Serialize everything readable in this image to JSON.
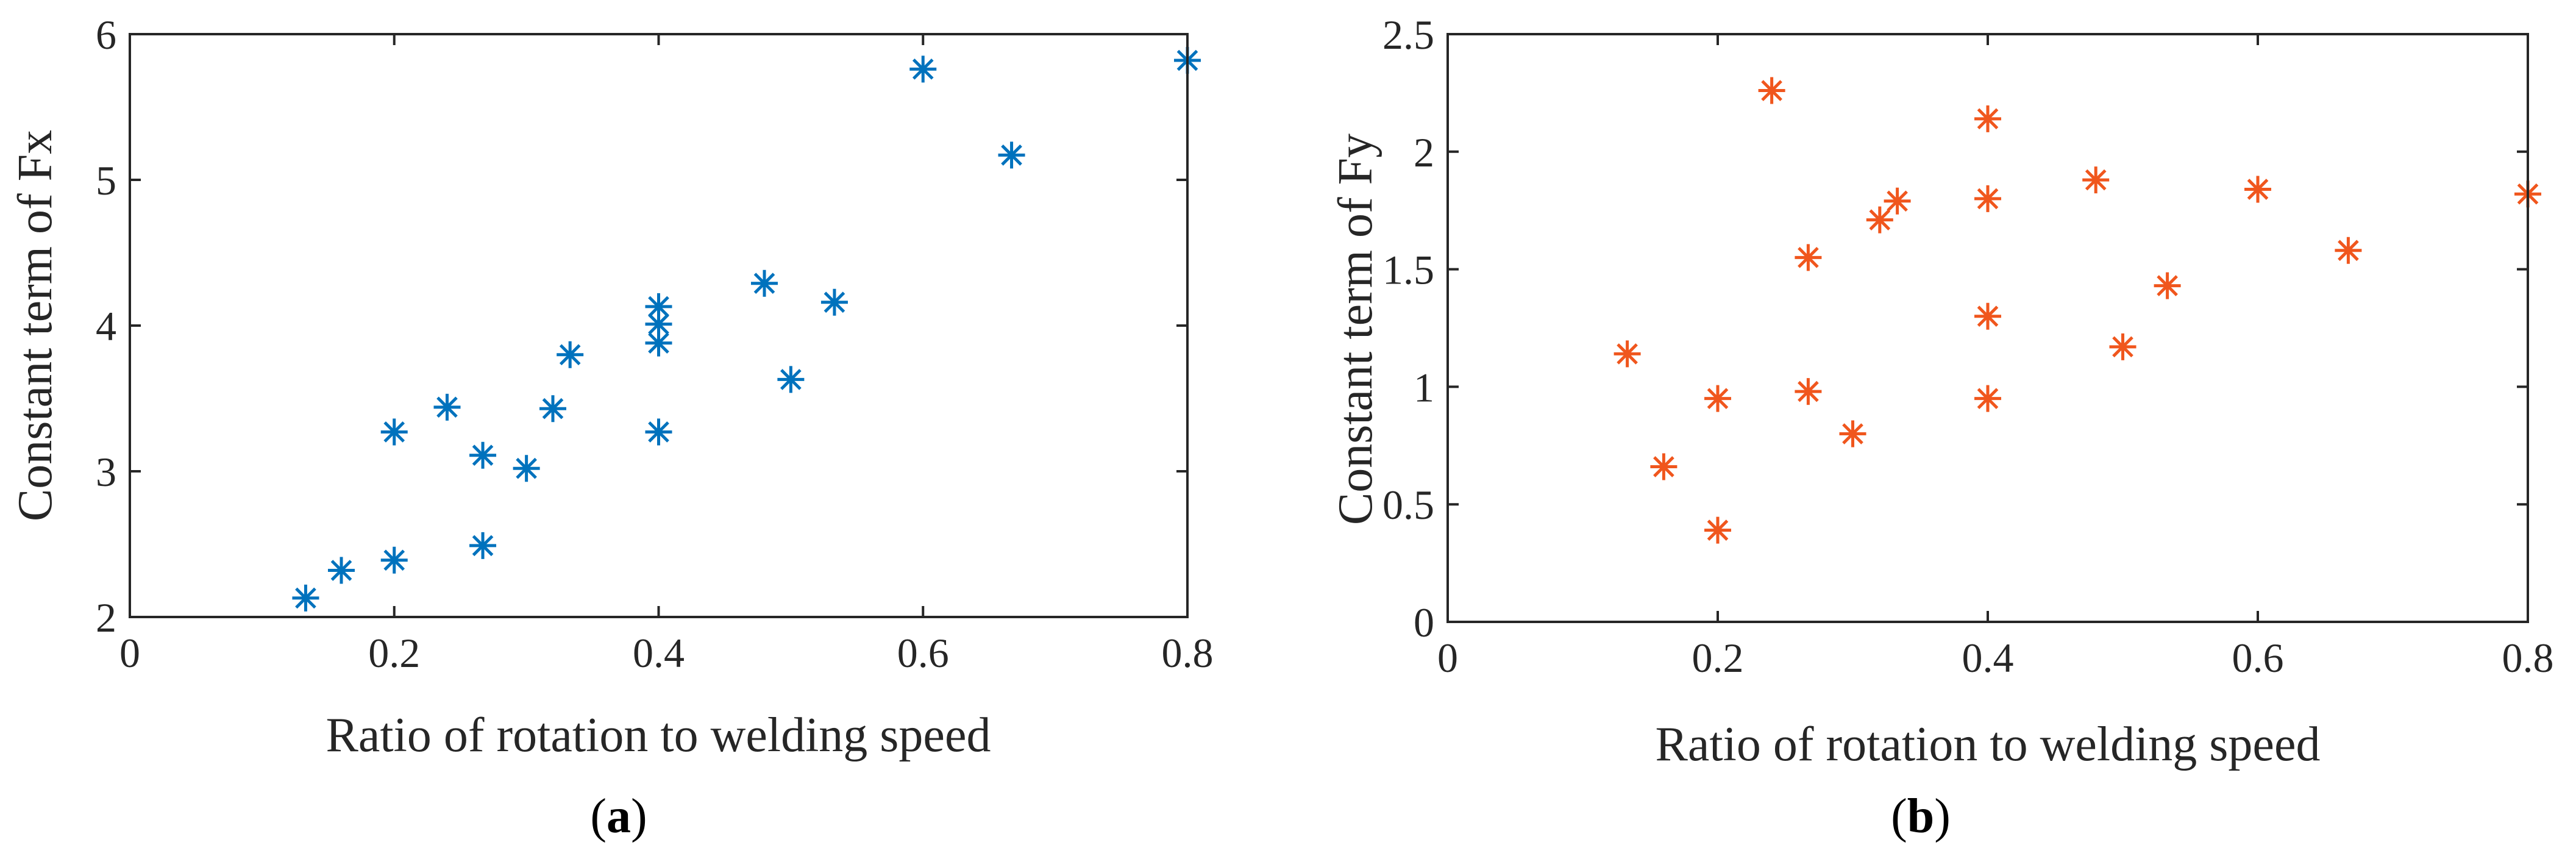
{
  "figure": {
    "panels": [
      {
        "caption_open": "(",
        "caption_letter": "a",
        "caption_close": ")"
      },
      {
        "caption_open": "(",
        "caption_letter": "b",
        "caption_close": ")"
      }
    ]
  },
  "chart_data": [
    {
      "type": "scatter",
      "title": "",
      "xlabel": "Ratio of rotation to welding speed",
      "ylabel": "Constant term of Fx",
      "xlim": [
        0,
        0.8
      ],
      "ylim": [
        2,
        6
      ],
      "xticks": [
        0,
        0.2,
        0.4,
        0.6,
        0.8
      ],
      "xtick_labels": [
        "0",
        "0.2",
        "0.4",
        "0.6",
        "0.8"
      ],
      "yticks": [
        2,
        3,
        4,
        5,
        6
      ],
      "ytick_labels": [
        "2",
        "3",
        "4",
        "5",
        "6"
      ],
      "grid": false,
      "marker": "asterisk",
      "color": "#0072BD",
      "series": [
        {
          "name": "Fx",
          "points": [
            {
              "x": 0.133,
              "y": 2.13
            },
            {
              "x": 0.16,
              "y": 2.32
            },
            {
              "x": 0.2,
              "y": 2.39
            },
            {
              "x": 0.2,
              "y": 3.27
            },
            {
              "x": 0.24,
              "y": 3.44
            },
            {
              "x": 0.267,
              "y": 2.49
            },
            {
              "x": 0.267,
              "y": 3.11
            },
            {
              "x": 0.3,
              "y": 3.02
            },
            {
              "x": 0.32,
              "y": 3.43
            },
            {
              "x": 0.333,
              "y": 3.8
            },
            {
              "x": 0.4,
              "y": 3.27
            },
            {
              "x": 0.4,
              "y": 3.88
            },
            {
              "x": 0.4,
              "y": 4.01
            },
            {
              "x": 0.4,
              "y": 4.13
            },
            {
              "x": 0.48,
              "y": 4.29
            },
            {
              "x": 0.5,
              "y": 3.63
            },
            {
              "x": 0.533,
              "y": 4.16
            },
            {
              "x": 0.6,
              "y": 5.76
            },
            {
              "x": 0.667,
              "y": 5.17
            },
            {
              "x": 0.8,
              "y": 5.82
            }
          ]
        }
      ]
    },
    {
      "type": "scatter",
      "title": "",
      "xlabel": "Ratio of rotation to welding speed",
      "ylabel": "Constant term of Fy",
      "xlim": [
        0,
        0.8
      ],
      "ylim": [
        0,
        2.5
      ],
      "xticks": [
        0,
        0.2,
        0.4,
        0.6,
        0.8
      ],
      "xtick_labels": [
        "0",
        "0.2",
        "0.4",
        "0.6",
        "0.8"
      ],
      "yticks": [
        0,
        0.5,
        1,
        1.5,
        2,
        2.5
      ],
      "ytick_labels": [
        "0",
        "0.5",
        "1",
        "1.5",
        "2",
        "2.5"
      ],
      "grid": false,
      "marker": "asterisk",
      "color": "#F0561D",
      "series": [
        {
          "name": "Fy",
          "points": [
            {
              "x": 0.133,
              "y": 1.14
            },
            {
              "x": 0.16,
              "y": 0.66
            },
            {
              "x": 0.2,
              "y": 0.95
            },
            {
              "x": 0.2,
              "y": 0.39
            },
            {
              "x": 0.24,
              "y": 2.26
            },
            {
              "x": 0.267,
              "y": 1.55
            },
            {
              "x": 0.267,
              "y": 0.98
            },
            {
              "x": 0.3,
              "y": 0.8
            },
            {
              "x": 0.32,
              "y": 1.71
            },
            {
              "x": 0.333,
              "y": 1.79
            },
            {
              "x": 0.4,
              "y": 2.14
            },
            {
              "x": 0.4,
              "y": 1.8
            },
            {
              "x": 0.4,
              "y": 1.3
            },
            {
              "x": 0.4,
              "y": 0.95
            },
            {
              "x": 0.48,
              "y": 1.88
            },
            {
              "x": 0.5,
              "y": 1.17
            },
            {
              "x": 0.533,
              "y": 1.43
            },
            {
              "x": 0.6,
              "y": 1.84
            },
            {
              "x": 0.667,
              "y": 1.58
            },
            {
              "x": 0.8,
              "y": 1.82
            }
          ]
        }
      ]
    }
  ]
}
